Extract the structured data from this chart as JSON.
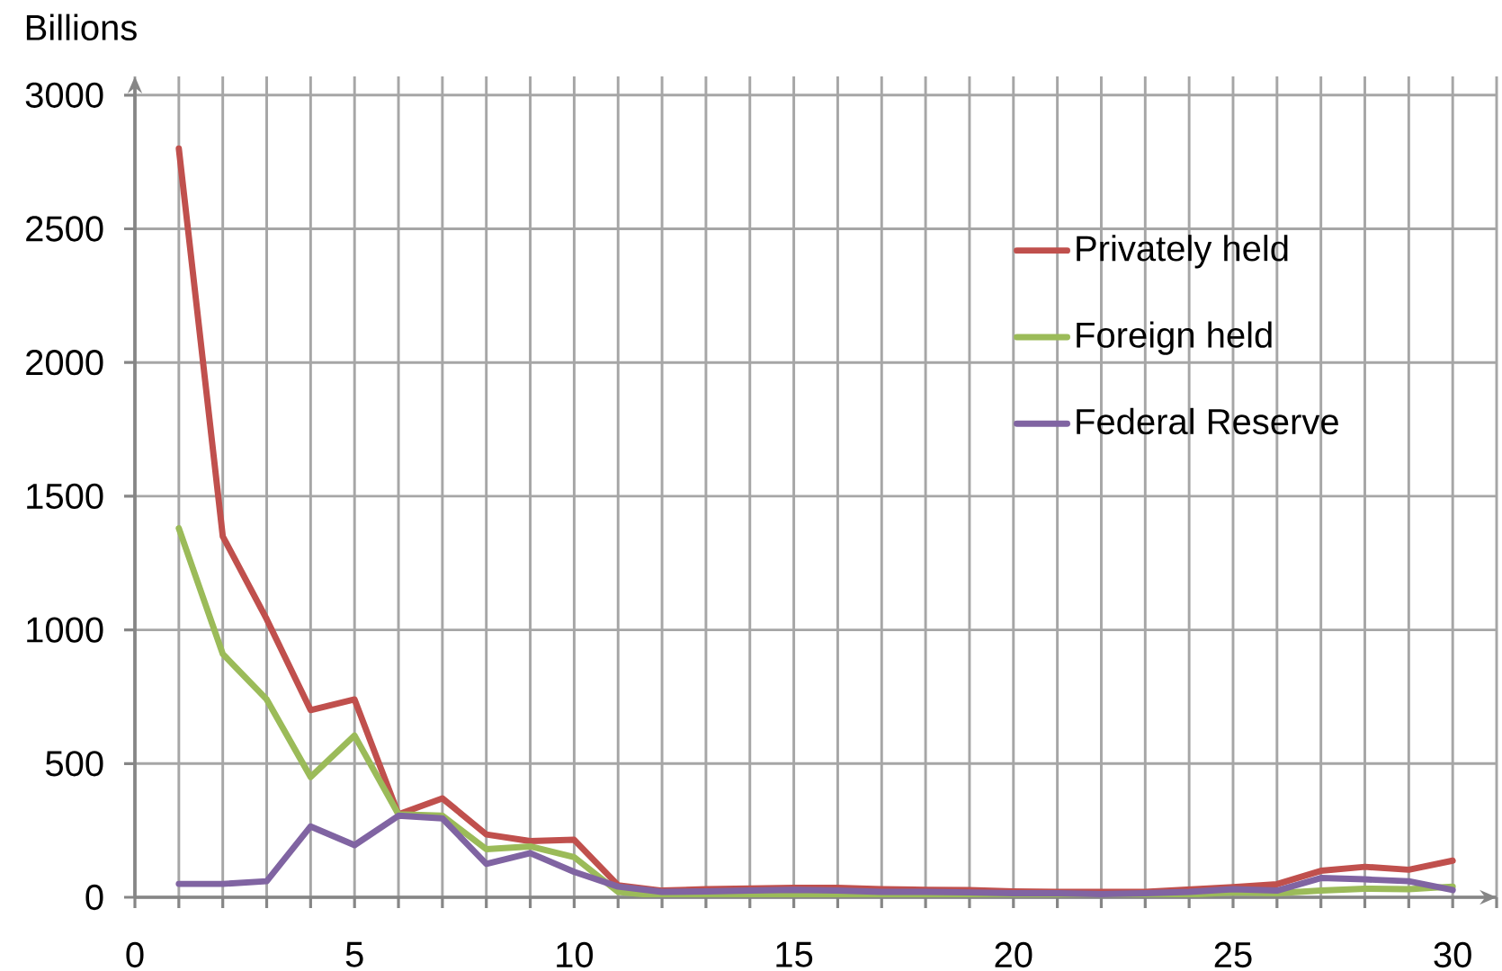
{
  "chart_data": {
    "type": "line",
    "ylabel": "Billions",
    "x": [
      1,
      2,
      3,
      4,
      5,
      6,
      7,
      8,
      9,
      10,
      11,
      12,
      13,
      14,
      15,
      16,
      17,
      18,
      19,
      20,
      21,
      22,
      23,
      24,
      25,
      26,
      27,
      28,
      29,
      30
    ],
    "series": [
      {
        "name": "Privately held",
        "color": "#c0504d",
        "values": [
          2800,
          1350,
          1040,
          700,
          740,
          310,
          370,
          235,
          210,
          215,
          45,
          25,
          30,
          33,
          35,
          35,
          30,
          28,
          27,
          22,
          20,
          20,
          20,
          29,
          38,
          49,
          99,
          114,
          103,
          137
        ]
      },
      {
        "name": "Foreign held",
        "color": "#9bbb59",
        "values": [
          1380,
          910,
          740,
          450,
          605,
          310,
          305,
          180,
          190,
          150,
          20,
          5,
          8,
          10,
          12,
          10,
          8,
          8,
          6,
          5,
          5,
          8,
          8,
          10,
          18,
          15,
          25,
          32,
          30,
          40
        ]
      },
      {
        "name": "Federal Reserve",
        "color": "#8064a2",
        "values": [
          50,
          50,
          60,
          265,
          195,
          305,
          295,
          125,
          165,
          95,
          40,
          20,
          22,
          25,
          28,
          25,
          20,
          20,
          18,
          15,
          15,
          12,
          15,
          20,
          30,
          25,
          72,
          67,
          60,
          27
        ]
      }
    ],
    "xlim": [
      0,
      31
    ],
    "xticks": [
      0,
      {
        "value": 1,
        "label": null
      },
      {
        "value": 2,
        "label": null
      },
      {
        "value": 3,
        "label": null
      },
      {
        "value": 4,
        "label": null
      },
      5,
      {
        "value": 6,
        "label": null
      },
      {
        "value": 7,
        "label": null
      },
      {
        "value": 8,
        "label": null
      },
      {
        "value": 9,
        "label": null
      },
      10,
      {
        "value": 11,
        "label": null
      },
      {
        "value": 12,
        "label": null
      },
      {
        "value": 13,
        "label": null
      },
      {
        "value": 14,
        "label": null
      },
      15,
      {
        "value": 16,
        "label": null
      },
      {
        "value": 17,
        "label": null
      },
      {
        "value": 18,
        "label": null
      },
      {
        "value": 19,
        "label": null
      },
      20,
      {
        "value": 21,
        "label": null
      },
      {
        "value": 22,
        "label": null
      },
      {
        "value": 23,
        "label": null
      },
      {
        "value": 24,
        "label": null
      },
      25,
      {
        "value": 26,
        "label": null
      },
      {
        "value": 27,
        "label": null
      },
      {
        "value": 28,
        "label": null
      },
      {
        "value": 29,
        "label": null
      },
      30,
      {
        "value": 31,
        "label": null
      }
    ],
    "ylim": [
      0,
      3070
    ],
    "yticks": [
      0,
      500,
      1000,
      1500,
      2000,
      2500,
      3000
    ],
    "grid": true,
    "legend": "top right"
  }
}
